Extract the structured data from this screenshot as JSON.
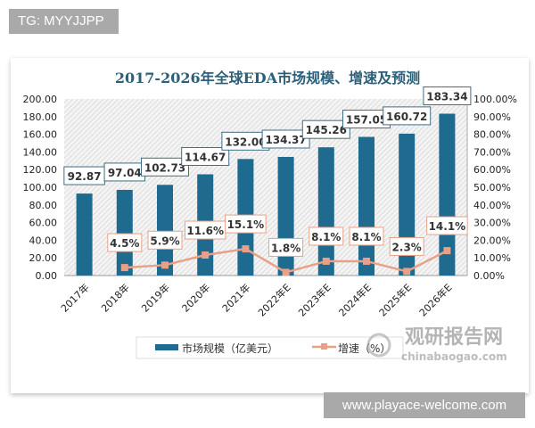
{
  "tag": "TG: MYYJJPP",
  "site": "www.playace-welcome.com",
  "watermark": {
    "name": "观研报告网",
    "url": "chinabaogao.com"
  },
  "chart_data": {
    "type": "bar+line",
    "title": "2017-2026年全球EDA市场规模、增速及预测",
    "categories": [
      "2017年",
      "2018年",
      "2019年",
      "2020年",
      "2021年",
      "2022年E",
      "2023年E",
      "2024年E",
      "2025年E",
      "2026年E"
    ],
    "series": [
      {
        "name": "市场规模（亿美元）",
        "type": "bar",
        "axis": "left",
        "color": "#1f6a8f",
        "values": [
          92.87,
          97.04,
          102.73,
          114.67,
          132.0,
          134.37,
          145.26,
          157.05,
          160.72,
          183.34
        ],
        "labels": [
          "92.87",
          "97.04",
          "102.73",
          "114.67",
          "132.00",
          "134.37",
          "145.26",
          "157.05",
          "160.72",
          "183.34"
        ]
      },
      {
        "name": "增速（%）",
        "type": "line",
        "axis": "right",
        "color": "#e8a187",
        "values": [
          null,
          4.5,
          5.9,
          11.6,
          15.1,
          1.8,
          8.1,
          8.1,
          2.3,
          14.1
        ],
        "labels": [
          "",
          "4.5%",
          "5.9%",
          "11.6%",
          "15.1%",
          "1.8%",
          "8.1%",
          "8.1%",
          "2.3%",
          "14.1%"
        ]
      }
    ],
    "y_left": {
      "range": [
        0,
        200
      ],
      "ticks": [
        "0.00",
        "20.00",
        "40.00",
        "60.00",
        "80.00",
        "100.00",
        "120.00",
        "140.00",
        "160.00",
        "180.00",
        "200.00"
      ]
    },
    "y_right": {
      "range": [
        0,
        100
      ],
      "ticks": [
        "0.00%",
        "10.00%",
        "20.00%",
        "30.00%",
        "40.00%",
        "50.00%",
        "60.00%",
        "70.00%",
        "80.00%",
        "90.00%",
        "100.00%"
      ]
    },
    "legend": "bottom"
  }
}
